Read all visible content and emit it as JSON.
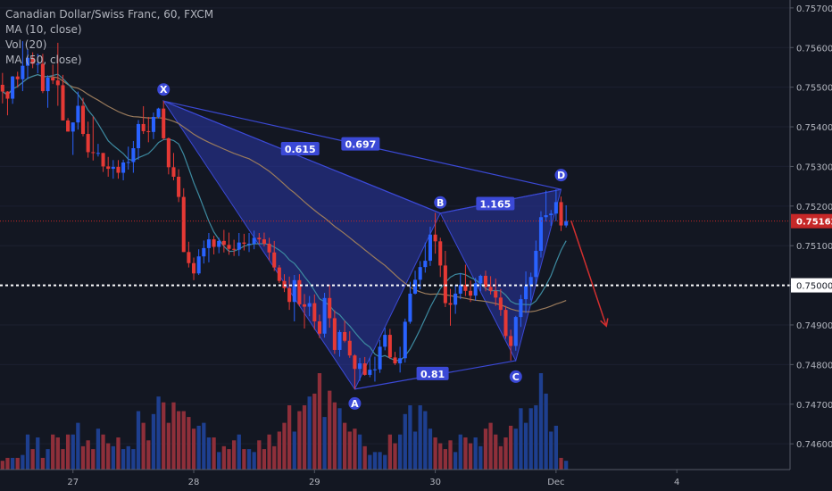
{
  "legend": {
    "title": "Canadian Dollar/Swiss Franc, 60, FXCM",
    "ma10": "MA (10, close)",
    "vol": "Vol (20)",
    "ma50": "MA (50, close)"
  },
  "colors": {
    "background": "#131722",
    "axis_text": "#b2b5be",
    "bull": "#2962ff",
    "bear": "#e53935",
    "vol_bull": "#1e3f8f",
    "vol_bear": "#8e2f3a",
    "ma10": "#3d8aa0",
    "ma50": "#9a7b5c",
    "pattern_fill": "#2a37a8",
    "pattern_line": "#3b49d6",
    "price_line": "#c62828",
    "arrow": "#d32f2f"
  },
  "chart_data": {
    "type": "candlestick",
    "y_ticks": [
      "0.75700",
      "0.75600",
      "0.75500",
      "0.75400",
      "0.75300",
      "0.75200",
      "0.75100",
      "0.75000",
      "0.74900",
      "0.74800",
      "0.74700",
      "0.74600"
    ],
    "x_ticks": [
      {
        "label": "27",
        "bar": 14
      },
      {
        "label": "28",
        "bar": 38
      },
      {
        "label": "29",
        "bar": 62
      },
      {
        "label": "30",
        "bar": 86
      },
      {
        "label": "Dec",
        "bar": 110
      },
      {
        "label": "4",
        "bar": 134
      }
    ],
    "ylim": [
      0.74535,
      0.7572
    ],
    "n_slots": 157,
    "current_price": "0.75162",
    "horizontal_level": "0.75000",
    "pattern": {
      "X": {
        "bar": 32,
        "price": 0.75465
      },
      "A": {
        "bar": 70,
        "price": 0.74738
      },
      "B": {
        "bar": 87,
        "price": 0.75182
      },
      "C": {
        "bar": 102,
        "price": 0.7481
      },
      "D": {
        "bar": 111,
        "price": 0.75242
      },
      "ratios": [
        {
          "label": "0.615",
          "on": "XB"
        },
        {
          "label": "0.697",
          "on": "XD"
        },
        {
          "label": "0.81",
          "on": "AC"
        },
        {
          "label": "1.165",
          "on": "BD"
        }
      ]
    },
    "projection": {
      "from": {
        "bar": 113,
        "price": 0.75163
      },
      "to": {
        "bar": 120,
        "price": 0.74897
      }
    },
    "candles": [
      [
        0.75506,
        0.75536,
        0.75459,
        0.75489
      ],
      [
        0.75489,
        0.7549,
        0.75429,
        0.75471
      ],
      [
        0.75471,
        0.75528,
        0.75458,
        0.75527
      ],
      [
        0.75527,
        0.75539,
        0.75499,
        0.7552
      ],
      [
        0.7552,
        0.75616,
        0.7549,
        0.75554
      ],
      [
        0.75554,
        0.75596,
        0.7552,
        0.75574
      ],
      [
        0.75574,
        0.75588,
        0.75548,
        0.75559
      ],
      [
        0.75559,
        0.75584,
        0.75535,
        0.75559
      ],
      [
        0.75559,
        0.75584,
        0.75485,
        0.7549
      ],
      [
        0.7549,
        0.7553,
        0.75448,
        0.75524
      ],
      [
        0.75524,
        0.75557,
        0.75508,
        0.75517
      ],
      [
        0.75517,
        0.75612,
        0.75453,
        0.75505
      ],
      [
        0.75505,
        0.75531,
        0.75416,
        0.75416
      ],
      [
        0.75416,
        0.75422,
        0.75388,
        0.75388
      ],
      [
        0.75388,
        0.75411,
        0.75329,
        0.75411
      ],
      [
        0.75411,
        0.75489,
        0.75393,
        0.75453
      ],
      [
        0.75453,
        0.75473,
        0.75376,
        0.75382
      ],
      [
        0.75382,
        0.75413,
        0.75322,
        0.75336
      ],
      [
        0.75336,
        0.75426,
        0.75315,
        0.75334
      ],
      [
        0.75334,
        0.75357,
        0.75325,
        0.75334
      ],
      [
        0.75334,
        0.75334,
        0.75286,
        0.753
      ],
      [
        0.753,
        0.75324,
        0.75274,
        0.75294
      ],
      [
        0.75294,
        0.75316,
        0.75269,
        0.75299
      ],
      [
        0.75299,
        0.75316,
        0.75269,
        0.75284
      ],
      [
        0.75284,
        0.75317,
        0.75265,
        0.7531
      ],
      [
        0.7531,
        0.7535,
        0.75292,
        0.75311
      ],
      [
        0.75311,
        0.75364,
        0.75284,
        0.75346
      ],
      [
        0.75346,
        0.75417,
        0.75317,
        0.75407
      ],
      [
        0.75407,
        0.75452,
        0.75382,
        0.75389
      ],
      [
        0.75389,
        0.75425,
        0.75361,
        0.75387
      ],
      [
        0.75387,
        0.75436,
        0.75369,
        0.75425
      ],
      [
        0.75425,
        0.75448,
        0.75421,
        0.75446
      ],
      [
        0.75446,
        0.75465,
        0.75367,
        0.75371
      ],
      [
        0.75371,
        0.75373,
        0.7528,
        0.75298
      ],
      [
        0.75298,
        0.75334,
        0.75265,
        0.75274
      ],
      [
        0.75274,
        0.75293,
        0.7521,
        0.75223
      ],
      [
        0.75223,
        0.75245,
        0.75084,
        0.75084
      ],
      [
        0.75084,
        0.7511,
        0.75045,
        0.75056
      ],
      [
        0.75056,
        0.7507,
        0.75013,
        0.7503
      ],
      [
        0.7503,
        0.75091,
        0.75026,
        0.75073
      ],
      [
        0.75073,
        0.75113,
        0.75055,
        0.75094
      ],
      [
        0.75094,
        0.75132,
        0.75058,
        0.75116
      ],
      [
        0.75116,
        0.75125,
        0.75078,
        0.75097
      ],
      [
        0.75097,
        0.7512,
        0.75081,
        0.75112
      ],
      [
        0.75112,
        0.7514,
        0.75083,
        0.75102
      ],
      [
        0.75102,
        0.75133,
        0.75077,
        0.75092
      ],
      [
        0.75092,
        0.75115,
        0.75074,
        0.7509
      ],
      [
        0.7509,
        0.75132,
        0.75074,
        0.75108
      ],
      [
        0.75108,
        0.7513,
        0.75088,
        0.75105
      ],
      [
        0.75105,
        0.75132,
        0.75084,
        0.75105
      ],
      [
        0.75105,
        0.75138,
        0.75091,
        0.7512
      ],
      [
        0.7512,
        0.75132,
        0.75104,
        0.75116
      ],
      [
        0.75116,
        0.75133,
        0.75098,
        0.75105
      ],
      [
        0.75105,
        0.7512,
        0.75063,
        0.75083
      ],
      [
        0.75083,
        0.75112,
        0.75036,
        0.75045
      ],
      [
        0.75045,
        0.75051,
        0.75006,
        0.75011
      ],
      [
        0.75011,
        0.75028,
        0.74983,
        0.74993
      ],
      [
        0.74993,
        0.75022,
        0.74938,
        0.74958
      ],
      [
        0.74958,
        0.75026,
        0.74909,
        0.75013
      ],
      [
        0.75013,
        0.75028,
        0.74947,
        0.74952
      ],
      [
        0.74952,
        0.74978,
        0.74891,
        0.74946
      ],
      [
        0.74946,
        0.74973,
        0.74922,
        0.74955
      ],
      [
        0.74955,
        0.74977,
        0.74888,
        0.74909
      ],
      [
        0.74909,
        0.74926,
        0.74867,
        0.74878
      ],
      [
        0.74878,
        0.74981,
        0.74868,
        0.74968
      ],
      [
        0.74968,
        0.75001,
        0.74893,
        0.74917
      ],
      [
        0.74917,
        0.74937,
        0.74827,
        0.74837
      ],
      [
        0.74837,
        0.74887,
        0.7482,
        0.74882
      ],
      [
        0.74882,
        0.74911,
        0.74856,
        0.7486
      ],
      [
        0.7486,
        0.74884,
        0.74817,
        0.74823
      ],
      [
        0.74823,
        0.74826,
        0.74738,
        0.74789
      ],
      [
        0.74789,
        0.74817,
        0.74759,
        0.74803
      ],
      [
        0.74803,
        0.74819,
        0.74772,
        0.74774
      ],
      [
        0.74774,
        0.74817,
        0.74768,
        0.74787
      ],
      [
        0.74787,
        0.7482,
        0.74757,
        0.74788
      ],
      [
        0.74788,
        0.74862,
        0.74779,
        0.74845
      ],
      [
        0.74845,
        0.74893,
        0.74836,
        0.74875
      ],
      [
        0.74875,
        0.7489,
        0.74814,
        0.74818
      ],
      [
        0.74818,
        0.74832,
        0.74799,
        0.74803
      ],
      [
        0.74803,
        0.74845,
        0.7478,
        0.74816
      ],
      [
        0.74816,
        0.74916,
        0.74805,
        0.74908
      ],
      [
        0.74908,
        0.75009,
        0.74903,
        0.74979
      ],
      [
        0.74979,
        0.75037,
        0.74977,
        0.75014
      ],
      [
        0.75014,
        0.75061,
        0.7499,
        0.75046
      ],
      [
        0.75046,
        0.75108,
        0.75032,
        0.75062
      ],
      [
        0.75062,
        0.75148,
        0.75049,
        0.75128
      ],
      [
        0.75128,
        0.75183,
        0.7508,
        0.75111
      ],
      [
        0.75111,
        0.7512,
        0.75021,
        0.7505
      ],
      [
        0.7505,
        0.75087,
        0.74945,
        0.74955
      ],
      [
        0.74955,
        0.74991,
        0.74898,
        0.74951
      ],
      [
        0.74951,
        0.75001,
        0.74928,
        0.74979
      ],
      [
        0.74979,
        0.7503,
        0.74965,
        0.75001
      ],
      [
        0.75001,
        0.75052,
        0.74973,
        0.74986
      ],
      [
        0.74986,
        0.75012,
        0.74958,
        0.74974
      ],
      [
        0.74974,
        0.75019,
        0.74961,
        0.75005
      ],
      [
        0.75005,
        0.75027,
        0.74985,
        0.75024
      ],
      [
        0.75024,
        0.75037,
        0.74985,
        0.74996
      ],
      [
        0.74996,
        0.75023,
        0.74977,
        0.74986
      ],
      [
        0.74986,
        0.75017,
        0.74948,
        0.74969
      ],
      [
        0.74969,
        0.74991,
        0.74923,
        0.74938
      ],
      [
        0.74938,
        0.74948,
        0.74865,
        0.74872
      ],
      [
        0.74872,
        0.74888,
        0.7481,
        0.74847
      ],
      [
        0.74847,
        0.74923,
        0.74835,
        0.7492
      ],
      [
        0.7492,
        0.74976,
        0.74895,
        0.74965
      ],
      [
        0.74965,
        0.75035,
        0.7493,
        0.74998
      ],
      [
        0.74998,
        0.75032,
        0.74962,
        0.75021
      ],
      [
        0.75021,
        0.75113,
        0.75002,
        0.75087
      ],
      [
        0.75087,
        0.75187,
        0.7507,
        0.75172
      ],
      [
        0.75172,
        0.75239,
        0.75161,
        0.75177
      ],
      [
        0.75177,
        0.7519,
        0.7515,
        0.75181
      ],
      [
        0.75181,
        0.75242,
        0.75162,
        0.7521
      ],
      [
        0.7521,
        0.75224,
        0.75137,
        0.75151
      ],
      [
        0.75151,
        0.75202,
        0.75146,
        0.75162
      ]
    ],
    "volume": [
      3,
      4,
      4,
      4,
      5,
      12,
      7,
      11,
      4,
      7,
      12,
      11,
      7,
      12,
      12,
      16,
      8,
      10,
      7,
      14,
      12,
      9,
      8,
      11,
      7,
      8,
      7,
      20,
      16,
      10,
      19,
      25,
      23,
      16,
      23,
      20,
      20,
      18,
      14,
      15,
      16,
      11,
      11,
      6,
      8,
      7,
      10,
      12,
      7,
      7,
      6,
      10,
      7,
      12,
      8,
      13,
      16,
      22,
      13,
      20,
      22,
      25,
      26,
      33,
      18,
      27,
      23,
      21,
      16,
      13,
      14,
      12,
      8,
      5,
      6,
      6,
      5,
      12,
      9,
      12,
      19,
      22,
      13,
      22,
      20,
      14,
      11,
      9,
      7,
      10,
      6,
      12,
      11,
      9,
      11,
      8,
      14,
      16,
      12,
      8,
      11,
      15,
      14,
      21,
      16,
      21,
      22,
      33,
      26,
      13,
      15,
      4,
      3
    ]
  }
}
